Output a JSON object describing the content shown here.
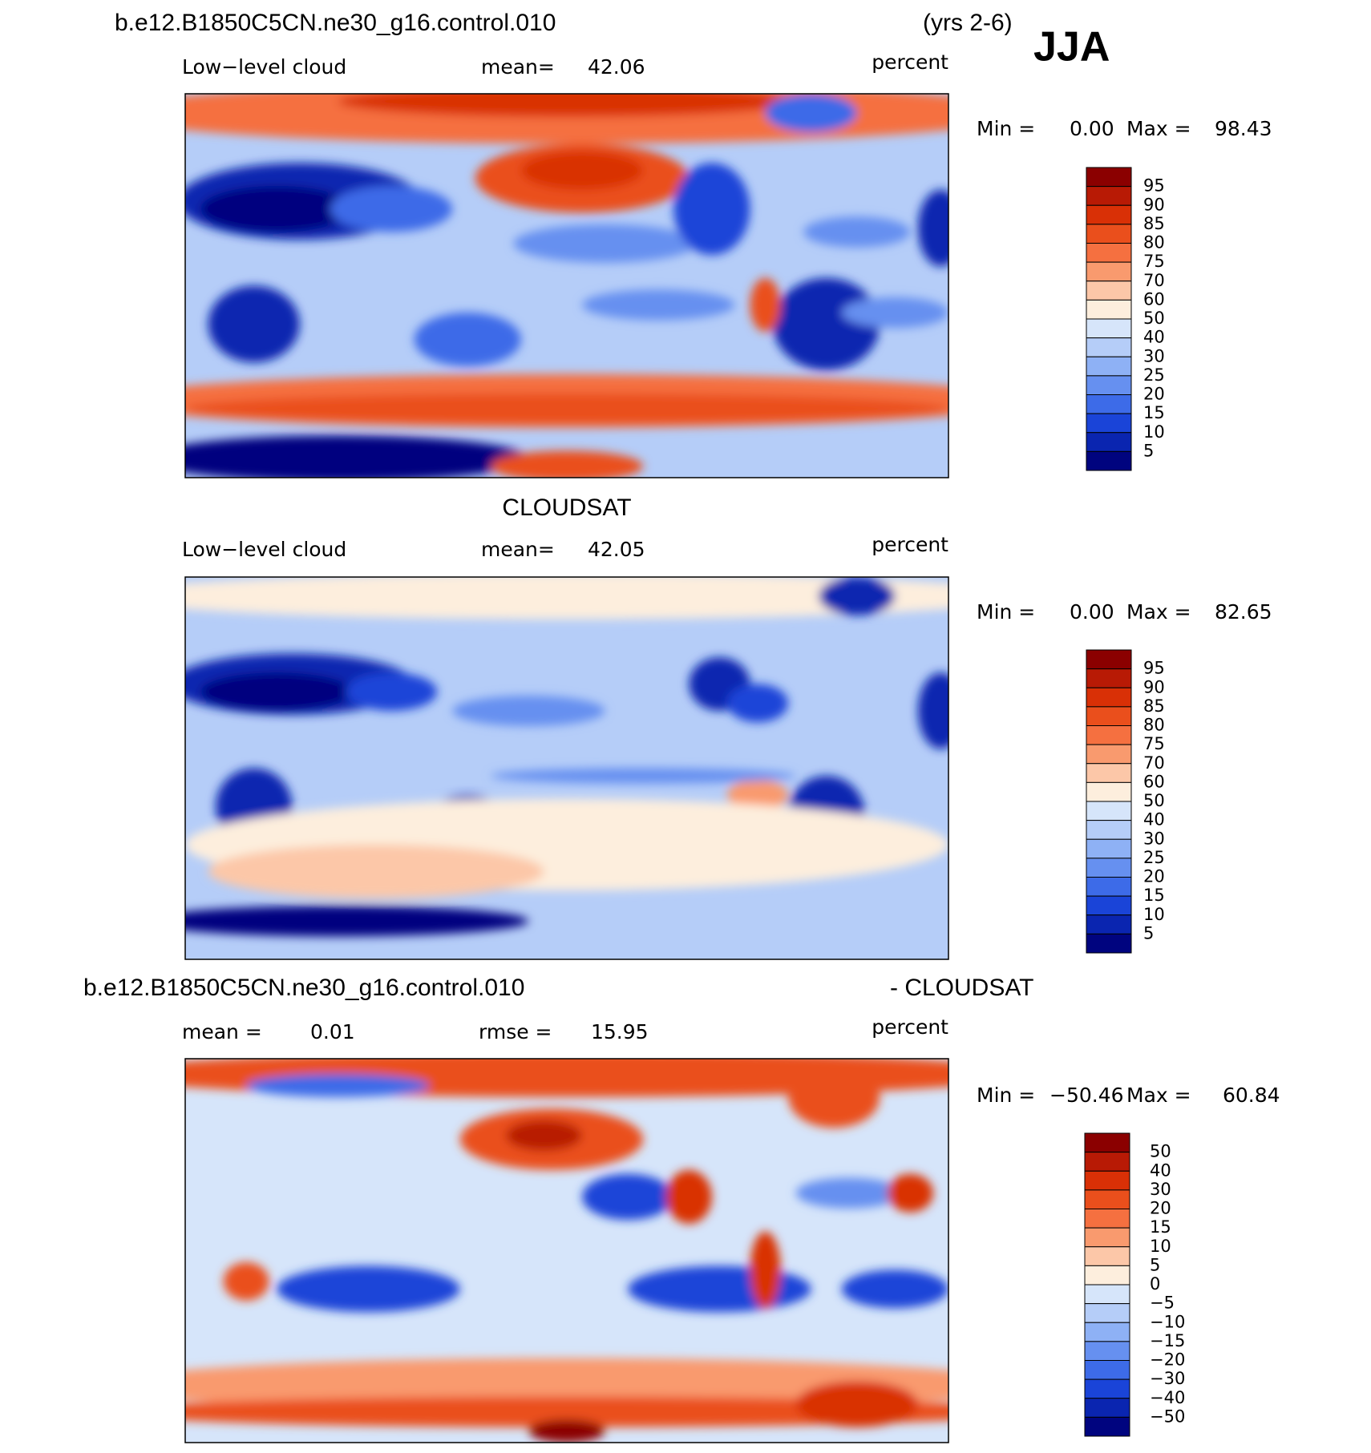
{
  "header": {
    "title": "b.e12.B1850C5CN.ne30_g16.control.010",
    "years": "(yrs 2-6)",
    "season": "JJA"
  },
  "palette": [
    "#8b0000",
    "#b81a05",
    "#d93006",
    "#ea4f1c",
    "#f57040",
    "#f99a6e",
    "#fcc7a8",
    "#fdeedd",
    "#d6e5fa",
    "#b5cdf8",
    "#8eb1f5",
    "#6690f0",
    "#3d6be8",
    "#1a44d8",
    "#0a25b0",
    "#00047f"
  ],
  "panels": [
    {
      "variable": "Low−level cloud",
      "mean_label": "mean=",
      "mean": "42.06",
      "units": "percent",
      "min_label": "Min =",
      "min": "0.00",
      "max_label": "Max =",
      "max": "98.43",
      "colorbar": [
        "95",
        "90",
        "85",
        "80",
        "75",
        "70",
        "60",
        "50",
        "40",
        "30",
        "25",
        "20",
        "15",
        "10",
        "5"
      ]
    },
    {
      "title": "CLOUDSAT",
      "variable": "Low−level cloud",
      "mean_label": "mean=",
      "mean": "42.05",
      "units": "percent",
      "min_label": "Min =",
      "min": "0.00",
      "max_label": "Max =",
      "max": "82.65",
      "colorbar": [
        "95",
        "90",
        "85",
        "80",
        "75",
        "70",
        "60",
        "50",
        "40",
        "30",
        "25",
        "20",
        "15",
        "10",
        "5"
      ]
    },
    {
      "title": "b.e12.B1850C5CN.ne30_g16.control.010",
      "title_suffix": "- CLOUDSAT",
      "mean_label": "mean =",
      "mean": "0.01",
      "rmse_label": "rmse =",
      "rmse": "15.95",
      "units": "percent",
      "min_label": "Min =",
      "min": "−50.46",
      "max_label": "Max =",
      "max": "60.84",
      "colorbar": [
        "50",
        "40",
        "30",
        "20",
        "15",
        "10",
        "5",
        "0",
        "−5",
        "−10",
        "−15",
        "−20",
        "−30",
        "−40",
        "−50"
      ]
    }
  ]
}
